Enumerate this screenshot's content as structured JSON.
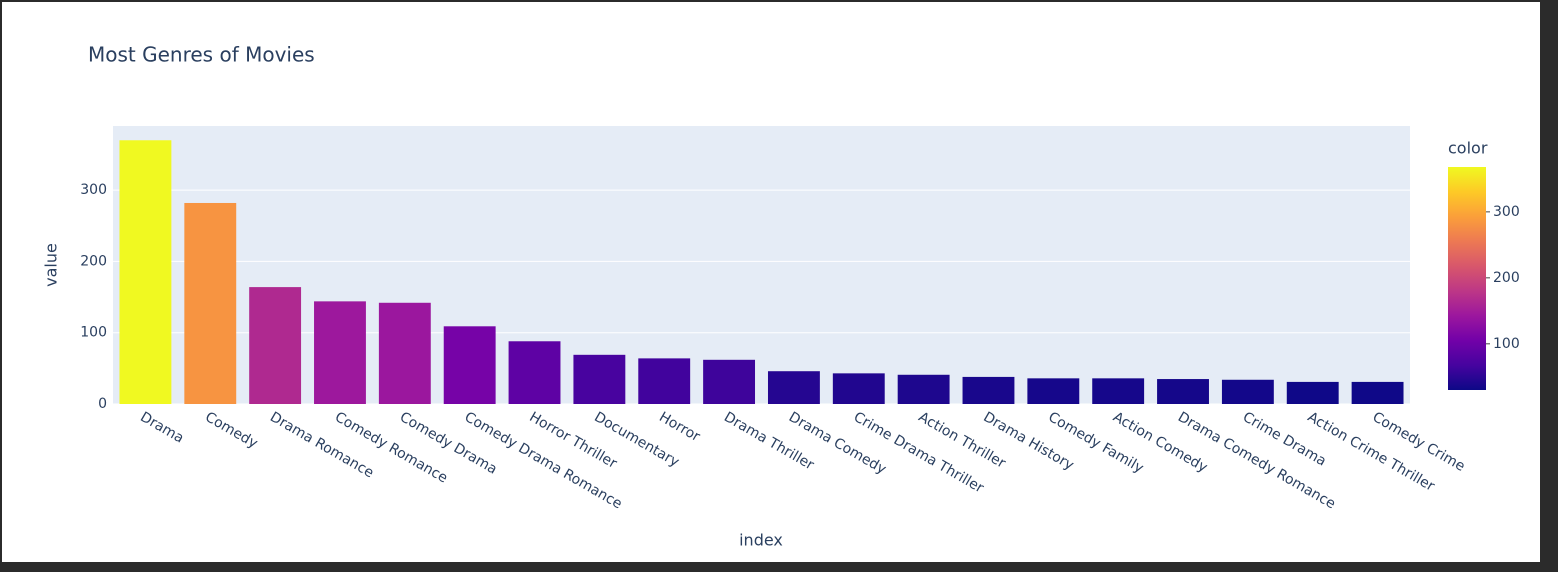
{
  "chart_data": {
    "type": "bar",
    "title": "Most Genres of Movies",
    "x_label": "index",
    "y_label": "value",
    "colorbar_title": "color",
    "categories": [
      "Drama",
      "Comedy",
      "Drama Romance",
      "Comedy Romance",
      "Comedy Drama",
      "Comedy Drama Romance",
      "Horror Thriller",
      "Documentary",
      "Horror",
      "Drama Thriller",
      "Drama Comedy",
      "Crime Drama Thriller",
      "Action Thriller",
      "Drama History",
      "Comedy Family",
      "Action Comedy",
      "Drama Comedy Romance",
      "Crime Drama",
      "Action Crime Thriller",
      "Comedy Crime"
    ],
    "values": [
      370,
      282,
      164,
      144,
      142,
      109,
      88,
      69,
      64,
      62,
      46,
      43,
      41,
      38,
      36,
      36,
      35,
      34,
      31,
      31
    ],
    "ylim": [
      0,
      390
    ],
    "yticks": [
      0,
      100,
      200,
      300
    ],
    "grid": true,
    "colorscale": [
      "#0d0887",
      "#46039f",
      "#7201a8",
      "#9c179e",
      "#bd3786",
      "#d8576b",
      "#ed7953",
      "#fb9f3a",
      "#fdca26",
      "#f0f921"
    ],
    "clim": [
      30,
      368
    ],
    "cticks": [
      100,
      200,
      300
    ]
  }
}
